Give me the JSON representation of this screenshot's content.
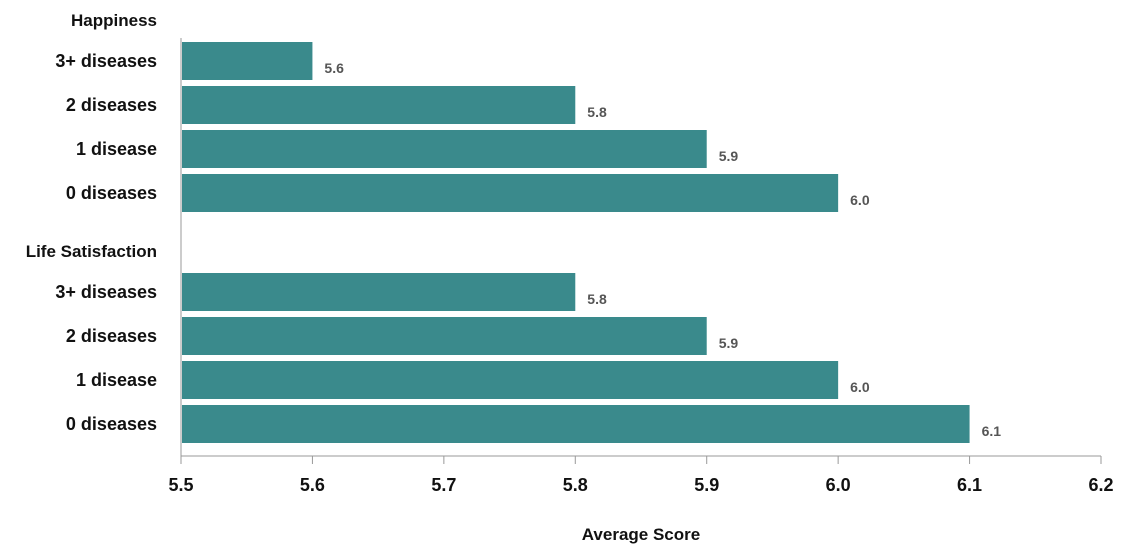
{
  "chart_data": {
    "type": "bar",
    "orientation": "horizontal",
    "xlabel": "Average Score",
    "xlim": [
      5.5,
      6.2
    ],
    "xticks": [
      "5.5",
      "5.6",
      "5.7",
      "5.8",
      "5.9",
      "6.0",
      "6.1",
      "6.2"
    ],
    "bar_color": "#3a8a8c",
    "groups": [
      {
        "name": "Happiness",
        "categories": [
          "3+ diseases",
          "2 diseases",
          "1 disease",
          "0 diseases"
        ],
        "values": [
          5.6,
          5.8,
          5.9,
          6.0
        ],
        "value_labels": [
          "5.6",
          "5.8",
          "5.9",
          "6.0"
        ]
      },
      {
        "name": "Life Satisfaction",
        "categories": [
          "3+ diseases",
          "2 diseases",
          "1 disease",
          "0 diseases"
        ],
        "values": [
          5.8,
          5.9,
          6.0,
          6.1
        ],
        "value_labels": [
          "5.8",
          "5.9",
          "6.0",
          "6.1"
        ]
      }
    ]
  }
}
